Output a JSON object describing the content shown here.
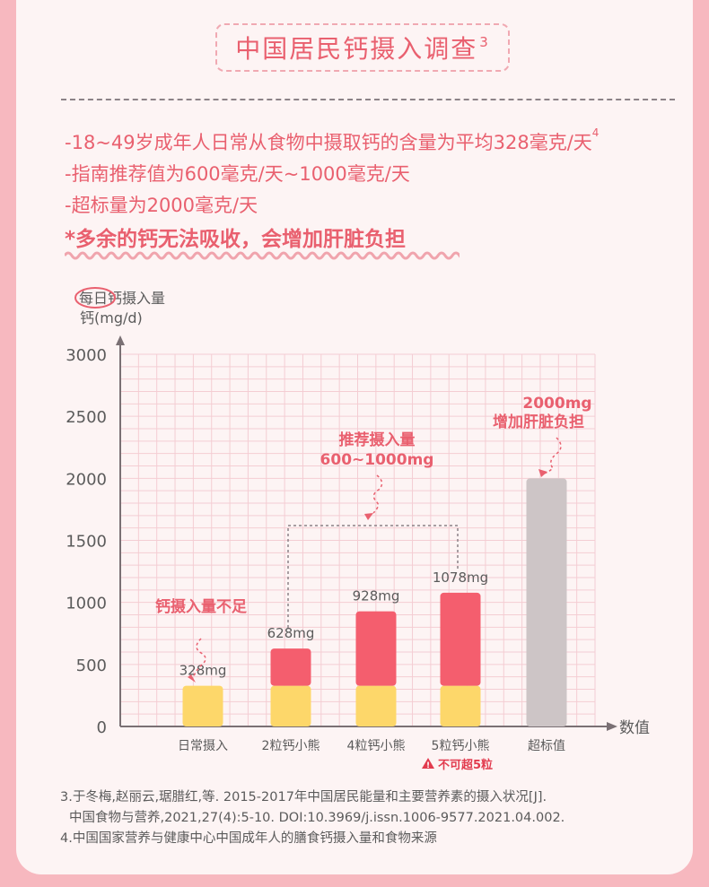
{
  "header": {
    "title": "中国居民钙摄入调查",
    "title_sup": "3"
  },
  "points": [
    {
      "text": "-18~49岁成年人日常从食物中摄取钙的含量为平均328毫克/天",
      "sup": "4"
    },
    {
      "text": "-指南推荐值为600毫克/天~1000毫克/天",
      "sup": ""
    },
    {
      "text": "-超标量为2000毫克/天",
      "sup": ""
    },
    {
      "text": "*多余的钙无法吸收，会增加肝脏负担",
      "sup": ""
    }
  ],
  "chart_data": {
    "type": "bar",
    "ylabel_line1": "每日钙摄入量",
    "ylabel_line2": "钙(mg/d)",
    "xlabel": "数值",
    "ylim": [
      0,
      3000
    ],
    "yticks": [
      0,
      500,
      1000,
      1500,
      2000,
      2500,
      3000
    ],
    "grid": true,
    "categories": [
      "日常摄入",
      "2粒钙小熊",
      "4粒钙小熊",
      "5粒钙小熊",
      "超标值"
    ],
    "series": [
      {
        "values": [
          328,
          328,
          328,
          328,
          0
        ],
        "color": "#fdd76a"
      },
      {
        "values": [
          0,
          300,
          600,
          750,
          0
        ],
        "color": "#f45e6e"
      },
      {
        "values": [
          0,
          0,
          0,
          0,
          2000
        ],
        "color": "#cdc5c6"
      }
    ],
    "totals": [
      328,
      628,
      928,
      1078,
      2000
    ],
    "data_labels": [
      "328mg",
      "628mg",
      "928mg",
      "1078mg",
      ""
    ],
    "annotations": {
      "low": "钙摄入量不足",
      "recommend_line1": "推荐摄入量",
      "recommend_line2": "600~1000mg",
      "excess_line1": "2000mg",
      "excess_line2": "增加肝脏负担",
      "warning": "不可超5粒"
    },
    "colors": {
      "grid": "#f4cdd3",
      "axis": "#7a7074",
      "text": "#5b5b5b",
      "accent": "#e9606f"
    }
  },
  "references": [
    "3.于冬梅,赵丽云,琚腊红,等. 2015-2017年中国居民能量和主要营养素的摄入状况[J].",
    "中国食物与营养,2021,27(4):5-10. DOI:10.3969/j.issn.1006-9577.2021.04.002.",
    "4.中国国家营养与健康中心中国成年人的膳食钙摄入量和食物来源"
  ]
}
